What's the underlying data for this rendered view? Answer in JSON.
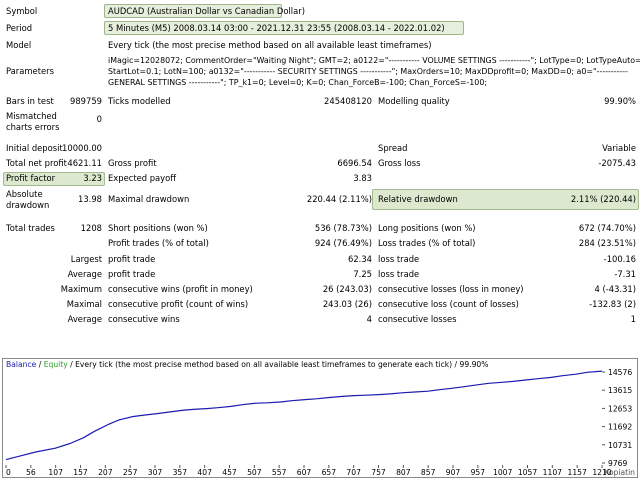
{
  "header": {
    "symbol_label": "Symbol",
    "symbol_value": "AUDCAD (Australian Dollar vs Canadian Dollar)",
    "period_label": "Period",
    "period_value": "5 Minutes (M5) 2008.03.14 03:00 - 2021.12.31 23:55 (2008.03.14 - 2022.01.02)",
    "model_label": "Model",
    "model_value": "Every tick (the most precise method based on all available least timeframes)",
    "parameters_label": "Parameters",
    "parameters_line1": "iMagic=12028072; CommentOrder=\"Waiting Night\"; GMT=2; a0122=\"----------- VOLUME SETTINGS -----------\"; LotType=0; LotTypeAuto=0;",
    "parameters_line2": "StartLot=0.1; LotN=100; a0132=\"----------- SECURITY SETTINGS -----------\"; MaxOrders=10; MaxDDprofit=0; MaxDD=0; a0=\"-----------",
    "parameters_line3": "GENERAL SETTINGS -----------\"; TP_k1=0; Level=0; K=0; Chan_ForceB=-100; Chan_ForceS=-100;"
  },
  "stats": {
    "bars_in_test_label": "Bars in test",
    "bars_in_test_value": "989759",
    "ticks_modelled_label": "Ticks modelled",
    "ticks_modelled_value": "245408120",
    "modelling_quality_label": "Modelling quality",
    "modelling_quality_value": "99.90%",
    "mismatched_label_1": "Mismatched",
    "mismatched_label_2": "charts errors",
    "mismatched_value": "0",
    "initial_deposit_label": "Initial deposit",
    "initial_deposit_value": "10000.00",
    "spread_label": "Spread",
    "spread_value": "Variable",
    "total_net_profit_label": "Total net profit",
    "total_net_profit_value": "4621.11",
    "gross_profit_label": "Gross profit",
    "gross_profit_value": "6696.54",
    "gross_loss_label": "Gross loss",
    "gross_loss_value": "-2075.43",
    "profit_factor_label": "Profit factor",
    "profit_factor_value": "3.23",
    "expected_payoff_label": "Expected payoff",
    "expected_payoff_value": "3.83",
    "absolute_drawdown_label_1": "Absolute",
    "absolute_drawdown_label_2": "drawdown",
    "absolute_drawdown_value": "13.98",
    "maximal_drawdown_label": "Maximal drawdown",
    "maximal_drawdown_value": "220.44 (2.11%)",
    "relative_drawdown_label": "Relative drawdown",
    "relative_drawdown_value": "2.11% (220.44)",
    "total_trades_label": "Total trades",
    "total_trades_value": "1208",
    "short_positions_label": "Short positions (won %)",
    "short_positions_value": "536 (78.73%)",
    "long_positions_label": "Long positions (won %)",
    "long_positions_value": "672 (74.70%)",
    "profit_trades_label": "Profit trades (% of total)",
    "profit_trades_value": "924 (76.49%)",
    "loss_trades_label": "Loss trades (% of total)",
    "loss_trades_value": "284 (23.51%)",
    "largest_label": "Largest",
    "largest_profit_label": "profit trade",
    "largest_profit_value": "62.34",
    "largest_loss_label": "loss trade",
    "largest_loss_value": "-100.16",
    "average_label": "Average",
    "average_profit_label": "profit trade",
    "average_profit_value": "7.25",
    "average_loss_label": "loss trade",
    "average_loss_value": "-7.31",
    "maximum_label": "Maximum",
    "max_cons_wins_label": "consecutive wins (profit in money)",
    "max_cons_wins_value": "26 (243.03)",
    "max_cons_losses_label": "consecutive losses (loss in money)",
    "max_cons_losses_value": "4 (-43.31)",
    "maximal_label": "Maximal",
    "maximal_cons_profit_label": "consecutive profit (count of wins)",
    "maximal_cons_profit_value": "243.03 (26)",
    "maximal_cons_loss_label": "consecutive loss (count of losses)",
    "maximal_cons_loss_value": "-132.83 (2)",
    "average2_label": "Average",
    "avg_cons_wins_label": "consecutive wins",
    "avg_cons_wins_value": "4",
    "avg_cons_losses_label": "consecutive losses",
    "avg_cons_losses_value": "1"
  },
  "chart_data": {
    "type": "line",
    "legend_balance": "Balance",
    "legend_sep1": "/",
    "legend_equity": "Equity",
    "legend_rest": "/ Every tick (the most precise method based on all available least timeframes to generate each tick) / 99.90%",
    "x_ticks": [
      "0",
      "56",
      "107",
      "157",
      "207",
      "257",
      "307",
      "357",
      "407",
      "457",
      "507",
      "557",
      "607",
      "657",
      "707",
      "757",
      "807",
      "857",
      "907",
      "957",
      "1007",
      "1057",
      "1107",
      "1157",
      "1210"
    ],
    "y_ticks": [
      "14576",
      "13615",
      "12653",
      "11692",
      "10731",
      "9769"
    ],
    "ylim": [
      9769,
      14576
    ],
    "xlim": [
      0,
      1210
    ],
    "series": [
      {
        "name": "Balance",
        "color": "#1b1bb0",
        "x": [
          0,
          30,
          60,
          100,
          130,
          157,
          180,
          207,
          230,
          257,
          280,
          307,
          330,
          357,
          380,
          407,
          430,
          457,
          480,
          507,
          530,
          557,
          580,
          607,
          630,
          657,
          680,
          707,
          730,
          757,
          780,
          807,
          830,
          857,
          880,
          907,
          930,
          957,
          980,
          1007,
          1030,
          1057,
          1080,
          1107,
          1130,
          1157,
          1180,
          1210
        ],
        "y": [
          9950,
          10150,
          10350,
          10550,
          10800,
          11100,
          11450,
          11800,
          12050,
          12220,
          12300,
          12380,
          12460,
          12550,
          12600,
          12640,
          12690,
          12760,
          12850,
          12930,
          12950,
          12990,
          13060,
          13120,
          13160,
          13230,
          13280,
          13330,
          13350,
          13380,
          13420,
          13480,
          13520,
          13560,
          13640,
          13720,
          13800,
          13900,
          13980,
          14030,
          14080,
          14160,
          14220,
          14290,
          14380,
          14460,
          14560,
          14621
        ]
      }
    ]
  },
  "colors": {
    "highlight_bg": "#dde9cf",
    "highlight_border": "#a3b98f",
    "balance_line": "#1b1bb0",
    "equity_legend": "#2aa42a"
  },
  "watermark": "Kopiatin"
}
